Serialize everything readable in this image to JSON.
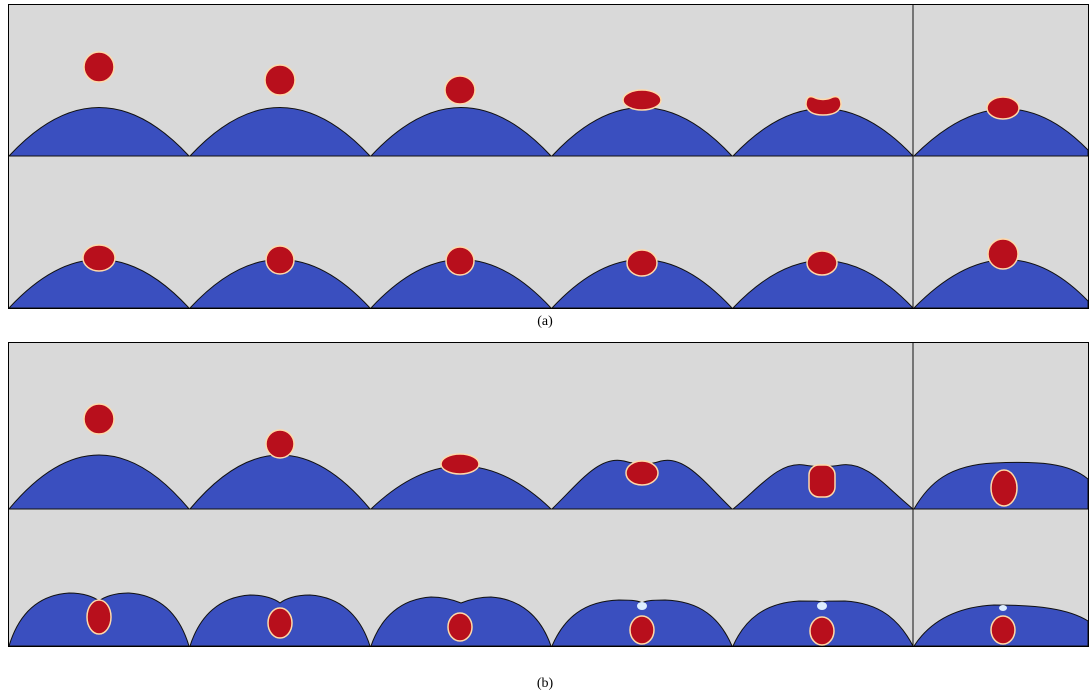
{
  "figure": {
    "caption_a": "(a)",
    "caption_b": "(b)"
  },
  "colors": {
    "background": "#d9d9d9",
    "liquid_pool": "#3a4fbf",
    "droplet": "#b80f1c",
    "droplet_outline": "#ffd9a8",
    "interface": "#111111",
    "cavity_highlight": "#ddeeff"
  }
}
